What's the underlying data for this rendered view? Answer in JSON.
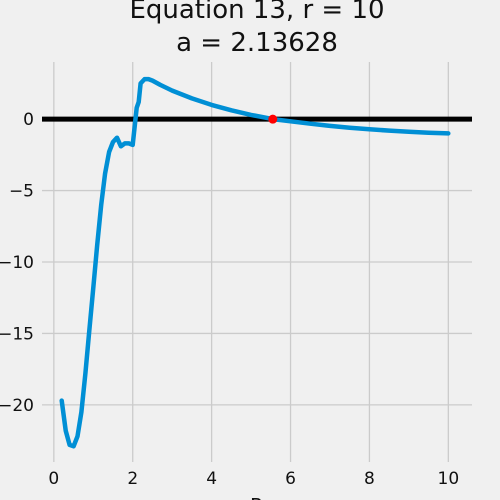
{
  "chart_data": {
    "type": "line",
    "title_line1": "Equation 13, r = 10",
    "title_line2": "a = 2.13628",
    "xlabel": "R",
    "ylabel": "",
    "xlim": [
      -0.3,
      10.6
    ],
    "ylim": [
      -24,
      4
    ],
    "xticks": [
      0,
      2,
      4,
      6,
      8,
      10
    ],
    "yticks": [
      0,
      -5,
      -10,
      -15,
      -20
    ],
    "grid": true,
    "colors": {
      "background": "#f0f0f0",
      "grid": "#cbcbcb",
      "series": "#008fd5",
      "zero_line": "#000000",
      "root_marker": "#ff0000"
    },
    "zero_line": 0,
    "root": {
      "x": 5.55,
      "y": 0
    },
    "series": [
      {
        "x": [
          0.2,
          0.3,
          0.4,
          0.5,
          0.6,
          0.7,
          0.8,
          0.9,
          1.0,
          1.1,
          1.2,
          1.3,
          1.4,
          1.5,
          1.6,
          1.7,
          1.8,
          1.9,
          2.0,
          2.1,
          2.15,
          2.2,
          2.3,
          2.4,
          2.5,
          2.7,
          3.0,
          3.5,
          4.0,
          4.5,
          5.0,
          5.55,
          6.0,
          6.5,
          7.0,
          7.5,
          8.0,
          8.5,
          9.0,
          9.5,
          10.0
        ],
        "values": [
          -19.7,
          -21.8,
          -22.8,
          -22.9,
          -22.2,
          -20.5,
          -17.8,
          -14.8,
          -11.8,
          -8.8,
          -6.0,
          -3.8,
          -2.3,
          -1.6,
          -1.3,
          -1.9,
          -1.7,
          -1.7,
          -1.8,
          0.8,
          1.2,
          2.5,
          2.8,
          2.8,
          2.7,
          2.4,
          2.0,
          1.45,
          1.0,
          0.62,
          0.3,
          0.0,
          -0.15,
          -0.32,
          -0.47,
          -0.6,
          -0.71,
          -0.8,
          -0.88,
          -0.95,
          -1.0
        ]
      }
    ]
  }
}
